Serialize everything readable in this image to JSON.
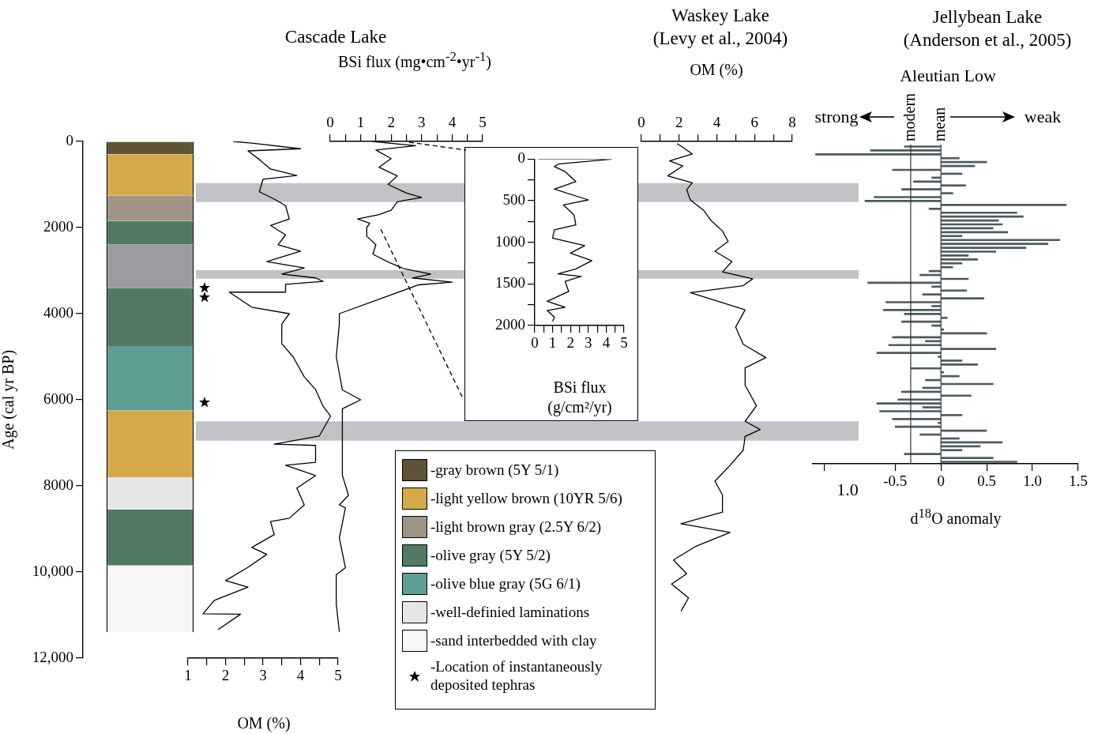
{
  "chart_data": [
    {
      "type": "bar",
      "stacked": true,
      "categories": [
        null
      ],
      "ylabel": "Age (cal yr BP)",
      "ylim": [
        12000,
        0
      ],
      "yticks": [
        0,
        2000,
        4000,
        6000,
        8000,
        {
          "value": 10000,
          "label": "10,000"
        },
        {
          "value": 12000,
          "label": "12,000"
        }
      ],
      "tick_labels": "y",
      "legend": "right",
      "annotations": [
        "-Location of instantaneously deposited tephras"
      ],
      "series": [
        {
          "name": "-gray brown (5Y 5/1)",
          "color": "#5f5438",
          "values": [
            300
          ]
        },
        {
          "name": "-light yellow brown (10YR 5/6)",
          "color": "#d4aa48",
          "values": [
            950
          ]
        },
        {
          "name": "-light brown gray (2.5Y 6/2)",
          "color": "#a09486",
          "values": [
            600
          ]
        },
        {
          "name": "-olive gray (5Y 5/2)",
          "color": "#527a62",
          "values": [
            550
          ]
        },
        {
          "color": "#9c9ca0",
          "values": [
            1000
          ]
        },
        {
          "color": "#527a62",
          "values": [
            1350
          ]
        },
        {
          "name": "-olive blue gray (5G 6/1)",
          "color": "#5e9e94",
          "values": [
            1500
          ]
        },
        {
          "color": "#d4aa48",
          "values": [
            1550
          ]
        },
        {
          "name": "-well-definied laminations",
          "color": "#e6e6e6",
          "values": [
            750
          ]
        },
        {
          "color": "#527a62",
          "values": [
            1300
          ]
        },
        {
          "name": "-sand interbedded with clay",
          "color": "#f6f6f6",
          "values": [
            1550
          ]
        }
      ]
    },
    {
      "type": "line",
      "orientation": "horizontal",
      "xlabel": "OM (%)",
      "xlim": [
        1,
        5
      ],
      "xticks": [
        1,
        {
          "value": 1.5,
          "label": null
        },
        2,
        {
          "value": 2.5,
          "label": null
        },
        3,
        {
          "value": 3.5,
          "label": null
        },
        4,
        {
          "value": 4.5,
          "label": null
        },
        5
      ],
      "ylim": [
        12000,
        0
      ],
      "tick_labels": "x",
      "x": [
        0,
        40,
        170,
        220,
        420,
        640,
        790,
        880,
        1170,
        1340,
        1490,
        1800,
        1950,
        2170,
        2400,
        2550,
        2790,
        2940,
        3080,
        3170,
        3250,
        3320,
        3500,
        3500,
        3850,
        4000,
        4240,
        4700,
        5000,
        5470,
        5760,
        6150,
        6380,
        6840,
        7030,
        7060,
        7450,
        7520,
        7760,
        8050,
        8440,
        8750,
        8830,
        9130,
        9430,
        9590,
        9890,
        10200,
        10350,
        10660,
        10970,
        10980,
        11340
      ],
      "values": [
        2.2,
        2.7,
        4.0,
        2.6,
        2.9,
        3.2,
        3.9,
        3.0,
        2.9,
        3.3,
        3.6,
        3.7,
        3.2,
        3.6,
        3.4,
        4.0,
        3.1,
        4.1,
        3.5,
        4.4,
        4.6,
        3.6,
        3.6,
        2.1,
        2.7,
        3.7,
        3.5,
        3.5,
        3.8,
        4.1,
        4.4,
        4.6,
        4.8,
        4.5,
        3.3,
        4.4,
        4.4,
        3.6,
        4.4,
        3.9,
        4.1,
        3.7,
        3.2,
        3.3,
        2.7,
        3.1,
        2.6,
        2.0,
        2.6,
        1.7,
        1.4,
        2.4,
        1.8
      ],
      "color": "#000000",
      "bands": [
        {
          "axis": "y",
          "from": 970,
          "to": 1410,
          "color": "#c1c3c7"
        },
        {
          "axis": "y",
          "from": 2990,
          "to": 3190,
          "color": "#c1c3c7"
        },
        {
          "axis": "y",
          "from": 6500,
          "to": 6950,
          "color": "#c1c3c7"
        }
      ]
    },
    {
      "type": "line",
      "orientation": "horizontal",
      "title": "Cascade Lake",
      "x2label": "BSi flux (mg•cm$^{-2}$•yr$^{-1}$)",
      "x2lim": [
        0,
        5
      ],
      "x2ticks": [
        0,
        {
          "value": 0.5,
          "label": null
        },
        1,
        {
          "value": 1.5,
          "label": null
        },
        2,
        {
          "value": 2.5,
          "label": null
        },
        3,
        {
          "value": 3.5,
          "label": null
        },
        4,
        {
          "value": 4.5,
          "label": null
        },
        5
      ],
      "ylim": [
        12000,
        0
      ],
      "tick_labels": "x",
      "series": [
        {
          "axis": "x2",
          "color": "#000000",
          "x": [
            0,
            100,
            200,
            400,
            600,
            800,
            1000,
            1200,
            1300,
            1400,
            1600,
            1700,
            1800,
            1900,
            2000,
            2200,
            2400,
            2620,
            2800,
            2950,
            3080,
            3170,
            3270,
            3330,
            4000,
            4240,
            5000,
            5770,
            6000,
            6210,
            6980,
            7750,
            8220,
            8440,
            8510,
            9210,
            9900,
            10060,
            10740,
            11390
          ],
          "values": [
            1.4,
            2.8,
            1.5,
            2.0,
            1.6,
            2.2,
            1.9,
            2.5,
            3.0,
            2.2,
            2.0,
            1.6,
            0.9,
            1.3,
            1.2,
            1.2,
            1.5,
            1.4,
            1.9,
            2.4,
            3.3,
            2.7,
            4.0,
            2.9,
            0.3,
            0.3,
            0.2,
            0.4,
            1.0,
            0.4,
            0.4,
            0.4,
            0.6,
            0.3,
            0.5,
            0.3,
            0.5,
            0.2,
            0.2,
            0.3
          ]
        }
      ],
      "bands": [
        {
          "axis": "y",
          "from": 970,
          "to": 1410,
          "color": "#c1c3c7"
        },
        {
          "axis": "y",
          "from": 2990,
          "to": 3190,
          "color": "#c1c3c7"
        },
        {
          "axis": "y",
          "from": 6500,
          "to": 6950,
          "color": "#c1c3c7"
        }
      ]
    },
    {
      "type": "line",
      "orientation": "horizontal",
      "xlabel": "BSi flux (g/cm²/yr)",
      "xlim": [
        0,
        5
      ],
      "xticks": [
        0,
        {
          "value": 0.5,
          "label": null
        },
        1,
        {
          "value": 1.5,
          "label": null
        },
        2,
        {
          "value": 2.5,
          "label": null
        },
        3,
        {
          "value": 3.5,
          "label": null
        },
        4,
        {
          "value": 4.5,
          "label": null
        },
        5
      ],
      "ylim": [
        2000,
        0
      ],
      "yticks": [
        0,
        {
          "value": 250,
          "label": null
        },
        500,
        {
          "value": 750,
          "label": null
        },
        1000,
        {
          "value": 1250,
          "label": null
        },
        1500,
        {
          "value": 1750,
          "label": null
        },
        2000
      ],
      "x": [
        0,
        0,
        60,
        90,
        150,
        270,
        360,
        490,
        550,
        670,
        790,
        850,
        950,
        1040,
        1130,
        1220,
        1320,
        1380,
        1410,
        1470,
        1590,
        1710,
        1780,
        1820,
        1900,
        1950
      ],
      "values": [
        0.2,
        4.3,
        1.3,
        1.1,
        1.7,
        2.3,
        1.1,
        3.0,
        1.6,
        2.2,
        2.3,
        1.1,
        1.0,
        2.8,
        2.0,
        3.2,
        2.3,
        1.3,
        2.6,
        1.7,
        1.9,
        0.7,
        1.7,
        0.7,
        1.1,
        1.0
      ],
      "color": "#000000"
    },
    {
      "type": "line",
      "orientation": "horizontal",
      "title": "Waskey Lake\n(Levy et al., 2004)",
      "x2label": "OM (%)",
      "x2lim": [
        0,
        8
      ],
      "x2ticks": [
        0,
        {
          "value": 1,
          "label": null
        },
        2,
        {
          "value": 3,
          "label": null
        },
        4,
        {
          "value": 5,
          "label": null
        },
        6,
        {
          "value": 7,
          "label": null
        },
        8
      ],
      "ylim": [
        12000,
        0
      ],
      "tick_labels": "x",
      "series": [
        {
          "axis": "x2",
          "color": "#000000",
          "x": [
            50,
            290,
            450,
            570,
            800,
            960,
            1120,
            1360,
            1600,
            1840,
            2080,
            2320,
            2550,
            2790,
            3030,
            3190,
            3350,
            3510,
            3910,
            4310,
            4710,
            5020,
            5260,
            5660,
            6140,
            6500,
            6690,
            6850,
            7170,
            7570,
            7890,
            8210,
            8610,
            8880,
            9080,
            9400,
            9720,
            10040,
            10280,
            10600,
            10910
          ],
          "values": [
            1.9,
            2.7,
            1.5,
            2.2,
            1.4,
            2.7,
            2.4,
            2.6,
            3.3,
            3.7,
            4.3,
            4.6,
            3.9,
            4.8,
            4.3,
            5.9,
            5.4,
            2.6,
            5.5,
            5.0,
            5.4,
            6.6,
            5.5,
            5.5,
            6.1,
            5.5,
            6.3,
            5.5,
            5.4,
            4.6,
            3.9,
            4.3,
            4.3,
            2.1,
            4.7,
            2.9,
            1.7,
            2.4,
            1.6,
            2.5,
            2.1
          ]
        }
      ],
      "bands": [
        {
          "axis": "y",
          "from": 970,
          "to": 1410,
          "color": "#c1c3c7"
        },
        {
          "axis": "y",
          "from": 2990,
          "to": 3190,
          "color": "#c1c3c7"
        },
        {
          "axis": "y",
          "from": 6500,
          "to": 6950,
          "color": "#c1c3c7"
        }
      ]
    },
    {
      "type": "bar",
      "orientation": "horizontal",
      "title": "Jellybean Lake\n(Anderson et al., 2005)",
      "xlabel": "d$^{18}$O anomaly",
      "xlim": [
        -1.4,
        1.5
      ],
      "xticks": [
        {
          "value": -1.27,
          "label": null
        },
        -0.5,
        0,
        0.5,
        {
          "value": 1,
          "label": "1.0"
        },
        1.5
      ],
      "tick_labels": "x",
      "annotations": [
        "Aleutian Low",
        "strong",
        "weak",
        "1.0"
      ],
      "ref_lines": [
        {
          "axis": "x",
          "value": -0.33,
          "label": "modern",
          "color": "#333333"
        },
        {
          "axis": "x",
          "value": 0,
          "label": "mean",
          "color": "#333333"
        }
      ],
      "categories": [
        null,
        null,
        null,
        null,
        null,
        null,
        null,
        null,
        null,
        null,
        null,
        null,
        null,
        null,
        null,
        null,
        null,
        null,
        null,
        null,
        null,
        null,
        null,
        null,
        null,
        null,
        null,
        null,
        null,
        null,
        null,
        null,
        null,
        null,
        null,
        null,
        null,
        null,
        null,
        null,
        null,
        null,
        null,
        null,
        null,
        null,
        null,
        null,
        null,
        null,
        null,
        null,
        null,
        null,
        null,
        null,
        null,
        null,
        null,
        null,
        null,
        null,
        null,
        null,
        null,
        null,
        null,
        null,
        null,
        null,
        null,
        null,
        null,
        null,
        null,
        null,
        null,
        null,
        null,
        null,
        null,
        null
      ],
      "values": [
        -0.4,
        -0.77,
        -1.37,
        0.2,
        0.5,
        0.37,
        -0.53,
        0.23,
        -0.1,
        -0.3,
        0.27,
        -0.43,
        0.13,
        -0.73,
        -0.83,
        1.37,
        -0.13,
        0.83,
        0.9,
        0.63,
        0.67,
        0.57,
        0.73,
        0.23,
        1.3,
        1.17,
        0.93,
        0.6,
        0.3,
        0.4,
        0.23,
        0.13,
        -0.13,
        -0.23,
        0.3,
        -0.8,
        -0.1,
        0.28,
        -0.2,
        0.47,
        -0.6,
        -0.1,
        -0.63,
        -0.4,
        0.07,
        -0.43,
        -0.1,
        0.03,
        0.5,
        -0.53,
        -0.17,
        -0.57,
        0.6,
        -0.7,
        -0.03,
        0.23,
        0.4,
        -0.33,
        0.03,
        0.2,
        -0.17,
        0.57,
        -0.2,
        -0.43,
        0.33,
        -0.47,
        -0.7,
        -0.2,
        -0.67,
        0.23,
        -0.53,
        -0.03,
        -0.5,
        0.5,
        -0.23,
        0.2,
        0.67,
        0.43,
        0.23,
        -0.4,
        0.57,
        0.83
      ],
      "color": "#4d5a5e"
    }
  ]
}
